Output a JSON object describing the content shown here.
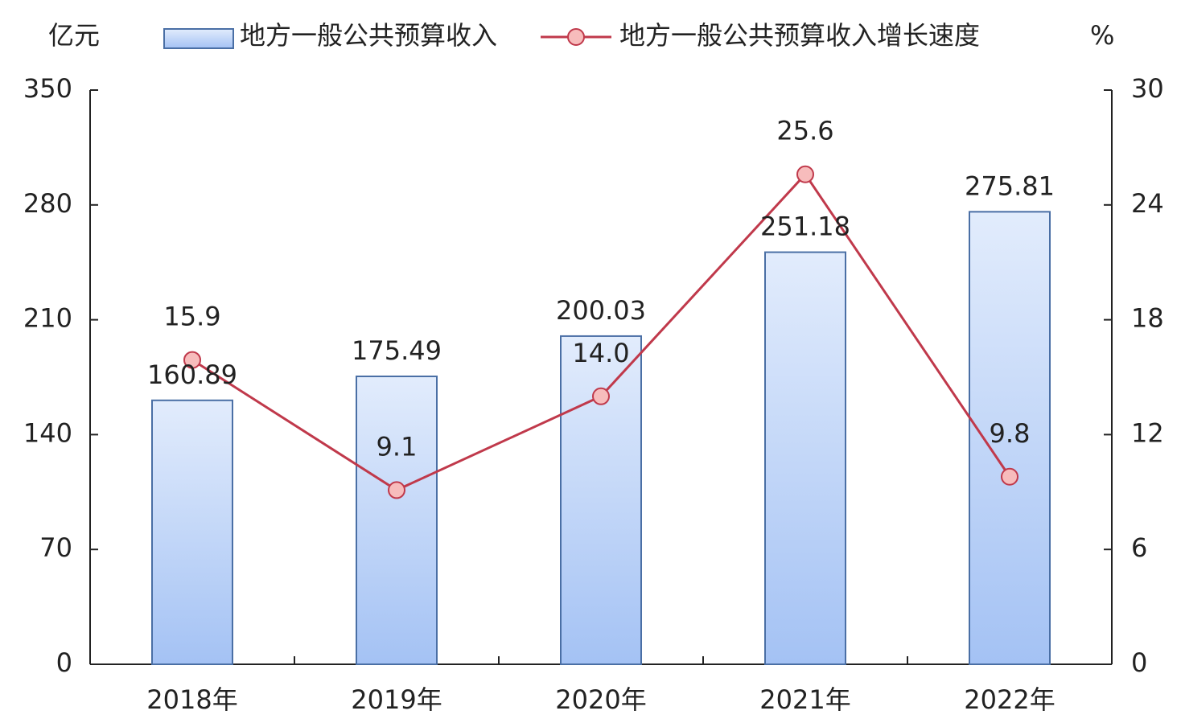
{
  "chart_data": {
    "type": "bar",
    "y_label": "亿元",
    "y2_label": "%",
    "categories": [
      "2018年",
      "2019年",
      "2020年",
      "2021年",
      "2022年"
    ],
    "series": [
      {
        "name": "地方一般公共预算收入",
        "type": "bar",
        "color": "#a4c2f4",
        "values": [
          160.89,
          175.49,
          200.03,
          251.18,
          275.81
        ]
      },
      {
        "name": "地方一般公共预算收入增长速度",
        "type": "line",
        "axis": "y2",
        "color": "#c0394b",
        "values": [
          15.9,
          9.1,
          14.0,
          25.6,
          9.8
        ],
        "value_labels": [
          "15.9",
          "9.1",
          "14.0",
          "25.6",
          "9.8"
        ]
      }
    ],
    "ylim": [
      0,
      350
    ],
    "yticks": [
      0,
      70,
      140,
      210,
      280,
      350
    ],
    "y2lim": [
      0,
      30
    ],
    "y2ticks": [
      0,
      6,
      12,
      18,
      24,
      30
    ],
    "legend": "top",
    "grid": false
  }
}
